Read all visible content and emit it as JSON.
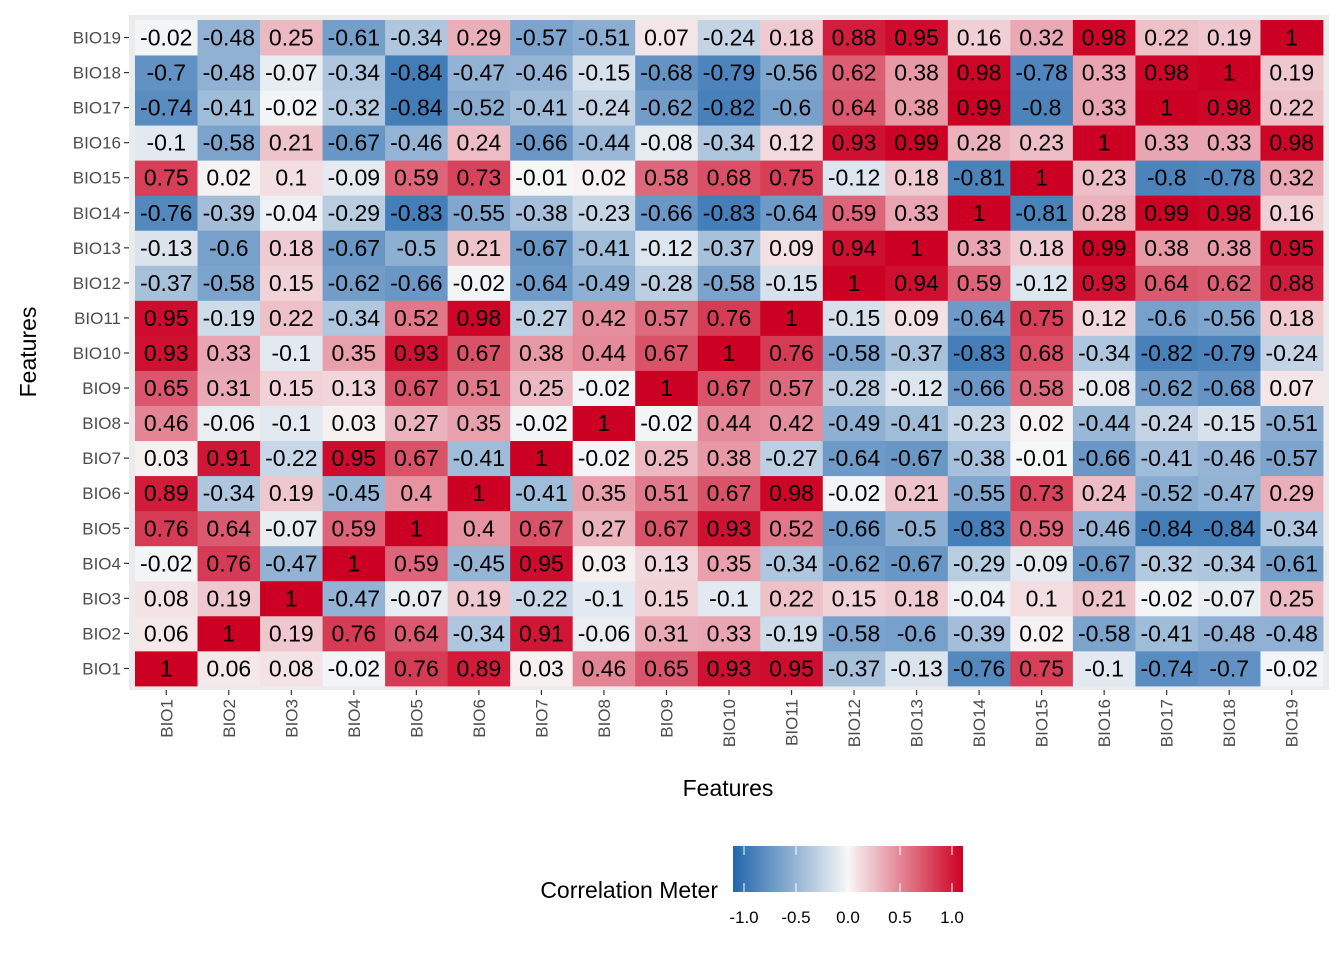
{
  "chart_data": {
    "type": "heatmap",
    "title": "",
    "xlabel": "Features",
    "ylabel": "Features",
    "features": [
      "BIO1",
      "BIO2",
      "BIO3",
      "BIO4",
      "BIO5",
      "BIO6",
      "BIO7",
      "BIO8",
      "BIO9",
      "BIO10",
      "BIO11",
      "BIO12",
      "BIO13",
      "BIO14",
      "BIO15",
      "BIO16",
      "BIO17",
      "BIO18",
      "BIO19"
    ],
    "matrix": [
      [
        1,
        0.06,
        0.08,
        -0.02,
        0.76,
        0.89,
        0.03,
        0.46,
        0.65,
        0.93,
        0.95,
        -0.37,
        -0.13,
        -0.76,
        0.75,
        -0.1,
        -0.74,
        -0.7,
        -0.02
      ],
      [
        0.06,
        1,
        0.19,
        0.76,
        0.64,
        -0.34,
        0.91,
        -0.06,
        0.31,
        0.33,
        -0.19,
        -0.58,
        -0.6,
        -0.39,
        0.02,
        -0.58,
        -0.41,
        -0.48,
        -0.48
      ],
      [
        0.08,
        0.19,
        1,
        -0.47,
        -0.07,
        0.19,
        -0.22,
        -0.1,
        0.15,
        -0.1,
        0.22,
        0.15,
        0.18,
        -0.04,
        0.1,
        0.21,
        -0.02,
        -0.07,
        0.25
      ],
      [
        -0.02,
        0.76,
        -0.47,
        1,
        0.59,
        -0.45,
        0.95,
        0.03,
        0.13,
        0.35,
        -0.34,
        -0.62,
        -0.67,
        -0.29,
        -0.09,
        -0.67,
        -0.32,
        -0.34,
        -0.61
      ],
      [
        0.76,
        0.64,
        -0.07,
        0.59,
        1,
        0.4,
        0.67,
        0.27,
        0.67,
        0.93,
        0.52,
        -0.66,
        -0.5,
        -0.83,
        0.59,
        -0.46,
        -0.84,
        -0.84,
        -0.34
      ],
      [
        0.89,
        -0.34,
        0.19,
        -0.45,
        0.4,
        1,
        -0.41,
        0.35,
        0.51,
        0.67,
        0.98,
        -0.02,
        0.21,
        -0.55,
        0.73,
        0.24,
        -0.52,
        -0.47,
        0.29
      ],
      [
        0.03,
        0.91,
        -0.22,
        0.95,
        0.67,
        -0.41,
        1,
        -0.02,
        0.25,
        0.38,
        -0.27,
        -0.64,
        -0.67,
        -0.38,
        -0.01,
        -0.66,
        -0.41,
        -0.46,
        -0.57
      ],
      [
        0.46,
        -0.06,
        -0.1,
        0.03,
        0.27,
        0.35,
        -0.02,
        1,
        -0.02,
        0.44,
        0.42,
        -0.49,
        -0.41,
        -0.23,
        0.02,
        -0.44,
        -0.24,
        -0.15,
        -0.51
      ],
      [
        0.65,
        0.31,
        0.15,
        0.13,
        0.67,
        0.51,
        0.25,
        -0.02,
        1,
        0.67,
        0.57,
        -0.28,
        -0.12,
        -0.66,
        0.58,
        -0.08,
        -0.62,
        -0.68,
        0.07
      ],
      [
        0.93,
        0.33,
        -0.1,
        0.35,
        0.93,
        0.67,
        0.38,
        0.44,
        0.67,
        1,
        0.76,
        -0.58,
        -0.37,
        -0.83,
        0.68,
        -0.34,
        -0.82,
        -0.79,
        -0.24
      ],
      [
        0.95,
        -0.19,
        0.22,
        -0.34,
        0.52,
        0.98,
        -0.27,
        0.42,
        0.57,
        0.76,
        1,
        -0.15,
        0.09,
        -0.64,
        0.75,
        0.12,
        -0.6,
        -0.56,
        0.18
      ],
      [
        -0.37,
        -0.58,
        0.15,
        -0.62,
        -0.66,
        -0.02,
        -0.64,
        -0.49,
        -0.28,
        -0.58,
        -0.15,
        1,
        0.94,
        0.59,
        -0.12,
        0.93,
        0.64,
        0.62,
        0.88
      ],
      [
        -0.13,
        -0.6,
        0.18,
        -0.67,
        -0.5,
        0.21,
        -0.67,
        -0.41,
        -0.12,
        -0.37,
        0.09,
        0.94,
        1,
        0.33,
        0.18,
        0.99,
        0.38,
        0.38,
        0.95
      ],
      [
        -0.76,
        -0.39,
        -0.04,
        -0.29,
        -0.83,
        -0.55,
        -0.38,
        -0.23,
        -0.66,
        -0.83,
        -0.64,
        0.59,
        0.33,
        1,
        -0.81,
        0.28,
        0.99,
        0.98,
        0.16
      ],
      [
        0.75,
        0.02,
        0.1,
        -0.09,
        0.59,
        0.73,
        -0.01,
        0.02,
        0.58,
        0.68,
        0.75,
        -0.12,
        0.18,
        -0.81,
        1,
        0.23,
        -0.8,
        -0.78,
        0.32
      ],
      [
        -0.1,
        -0.58,
        0.21,
        -0.67,
        -0.46,
        0.24,
        -0.66,
        -0.44,
        -0.08,
        -0.34,
        0.12,
        0.93,
        0.99,
        0.28,
        0.23,
        1,
        0.33,
        0.33,
        0.98
      ],
      [
        -0.74,
        -0.41,
        -0.02,
        -0.32,
        -0.84,
        -0.52,
        -0.41,
        -0.24,
        -0.62,
        -0.82,
        -0.6,
        0.64,
        0.38,
        0.99,
        -0.8,
        0.33,
        1,
        0.98,
        0.22
      ],
      [
        -0.7,
        -0.48,
        -0.07,
        -0.34,
        -0.84,
        -0.47,
        -0.46,
        -0.15,
        -0.68,
        -0.79,
        -0.56,
        0.62,
        0.38,
        0.98,
        -0.78,
        0.33,
        0.98,
        1,
        0.19
      ],
      [
        -0.02,
        -0.48,
        0.25,
        -0.61,
        -0.34,
        0.29,
        -0.57,
        -0.51,
        0.07,
        -0.24,
        0.18,
        0.88,
        0.95,
        0.16,
        0.32,
        0.98,
        0.22,
        0.19,
        1
      ]
    ],
    "value_range": [
      -1,
      1
    ],
    "colorscale": {
      "low": "#2166ac",
      "mid": "#f7f7f7",
      "high": "#cc0022"
    },
    "legend": {
      "title": "Correlation Meter",
      "position": "bottom",
      "ticks": [
        -1.0,
        -0.5,
        0.0,
        0.5,
        1.0
      ],
      "tick_labels": [
        "-1.0",
        "-0.5",
        "0.0",
        "0.5",
        "1.0"
      ]
    },
    "panel_background": "#ebebeb",
    "grid": false
  }
}
